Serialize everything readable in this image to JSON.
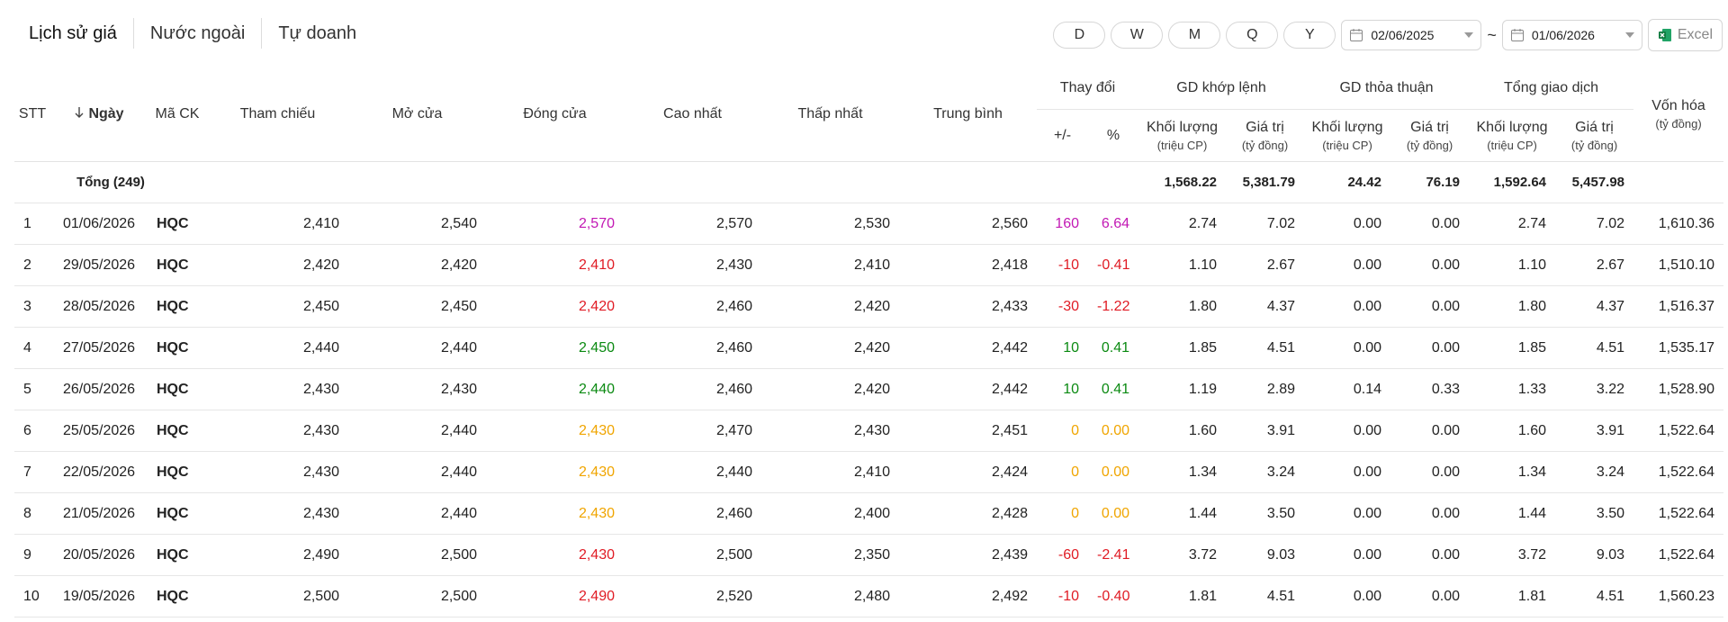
{
  "tabs": [
    "Lịch sử giá",
    "Nước ngoài",
    "Tự doanh"
  ],
  "periods": [
    "D",
    "W",
    "M",
    "Q",
    "Y"
  ],
  "date_from": "02/06/2025",
  "range_separator": "~",
  "date_to": "01/06/2026",
  "export": "Excel",
  "table": {
    "headers": [
      {
        "label": "STT"
      },
      {
        "label": "Ngày"
      },
      {
        "label": "Mã CK"
      },
      {
        "label": "Tham chiếu"
      },
      {
        "label": "Mở cửa"
      },
      {
        "label": "Đóng cửa"
      },
      {
        "label": "Cao nhất"
      },
      {
        "label": "Thấp nhất"
      },
      {
        "label": "Trung bình"
      },
      {
        "label": "Thay đổi",
        "columns": [
          {
            "label": "+/-"
          },
          {
            "label": "%"
          }
        ]
      },
      {
        "label": "GD khớp lệnh",
        "columns": [
          {
            "label": "Khối lượng",
            "unit": "(triệu CP)"
          },
          {
            "label": "Giá trị",
            "unit": "(tỷ đồng)"
          }
        ]
      },
      {
        "label": "GD thỏa thuận",
        "columns": [
          {
            "label": "Khối lượng",
            "unit": "(triệu CP)"
          },
          {
            "label": "Giá trị",
            "unit": "(tỷ đồng)"
          }
        ]
      },
      {
        "label": "Tổng giao dịch",
        "columns": [
          {
            "label": "Khối lượng",
            "unit": "(triệu CP)"
          },
          {
            "label": "Giá trị",
            "unit": "(tỷ đồng)"
          }
        ]
      },
      {
        "label": "Vốn hóa",
        "unit": "(tỷ đồng)"
      }
    ],
    "total": {
      "label": "Tổng (249)",
      "values": [
        "1,568.22",
        "5,381.79",
        "24.42",
        "76.19",
        "1,592.64",
        "5,457.98"
      ]
    },
    "rows": [
      {
        "color": "#c218b4",
        "cells": [
          "1",
          "01/06/2026",
          "HQC",
          "2,410",
          "2,540",
          "2,570",
          "2,570",
          "2,530",
          "2,560",
          "160",
          "6.64",
          "2.74",
          "7.02",
          "0.00",
          "0.00",
          "2.74",
          "7.02",
          "1,610.36"
        ]
      },
      {
        "color": "#e01b24",
        "cells": [
          "2",
          "29/05/2026",
          "HQC",
          "2,420",
          "2,420",
          "2,410",
          "2,430",
          "2,410",
          "2,418",
          "-10",
          "-0.41",
          "1.10",
          "2.67",
          "0.00",
          "0.00",
          "1.10",
          "2.67",
          "1,510.10"
        ]
      },
      {
        "color": "#e01b24",
        "cells": [
          "3",
          "28/05/2026",
          "HQC",
          "2,450",
          "2,450",
          "2,420",
          "2,460",
          "2,420",
          "2,433",
          "-30",
          "-1.22",
          "1.80",
          "4.37",
          "0.00",
          "0.00",
          "1.80",
          "4.37",
          "1,516.37"
        ]
      },
      {
        "color": "#0b8a12",
        "cells": [
          "4",
          "27/05/2026",
          "HQC",
          "2,440",
          "2,440",
          "2,450",
          "2,460",
          "2,420",
          "2,442",
          "10",
          "0.41",
          "1.85",
          "4.51",
          "0.00",
          "0.00",
          "1.85",
          "4.51",
          "1,535.17"
        ]
      },
      {
        "color": "#0b8a12",
        "cells": [
          "5",
          "26/05/2026",
          "HQC",
          "2,430",
          "2,430",
          "2,440",
          "2,460",
          "2,420",
          "2,442",
          "10",
          "0.41",
          "1.19",
          "2.89",
          "0.14",
          "0.33",
          "1.33",
          "3.22",
          "1,528.90"
        ]
      },
      {
        "color": "#f0a500",
        "cells": [
          "6",
          "25/05/2026",
          "HQC",
          "2,430",
          "2,440",
          "2,430",
          "2,470",
          "2,430",
          "2,451",
          "0",
          "0.00",
          "1.60",
          "3.91",
          "0.00",
          "0.00",
          "1.60",
          "3.91",
          "1,522.64"
        ]
      },
      {
        "color": "#f0a500",
        "cells": [
          "7",
          "22/05/2026",
          "HQC",
          "2,430",
          "2,440",
          "2,430",
          "2,440",
          "2,410",
          "2,424",
          "0",
          "0.00",
          "1.34",
          "3.24",
          "0.00",
          "0.00",
          "1.34",
          "3.24",
          "1,522.64"
        ]
      },
      {
        "color": "#f0a500",
        "cells": [
          "8",
          "21/05/2026",
          "HQC",
          "2,430",
          "2,440",
          "2,430",
          "2,460",
          "2,400",
          "2,428",
          "0",
          "0.00",
          "1.44",
          "3.50",
          "0.00",
          "0.00",
          "1.44",
          "3.50",
          "1,522.64"
        ]
      },
      {
        "color": "#e01b24",
        "cells": [
          "9",
          "20/05/2026",
          "HQC",
          "2,490",
          "2,500",
          "2,430",
          "2,500",
          "2,350",
          "2,439",
          "-60",
          "-2.41",
          "3.72",
          "9.03",
          "0.00",
          "0.00",
          "3.72",
          "9.03",
          "1,522.64"
        ]
      },
      {
        "color": "#e01b24",
        "cells": [
          "10",
          "19/05/2026",
          "HQC",
          "2,500",
          "2,500",
          "2,490",
          "2,520",
          "2,480",
          "2,492",
          "-10",
          "-0.40",
          "1.81",
          "4.51",
          "0.00",
          "0.00",
          "1.81",
          "4.51",
          "1,560.23"
        ]
      }
    ]
  }
}
